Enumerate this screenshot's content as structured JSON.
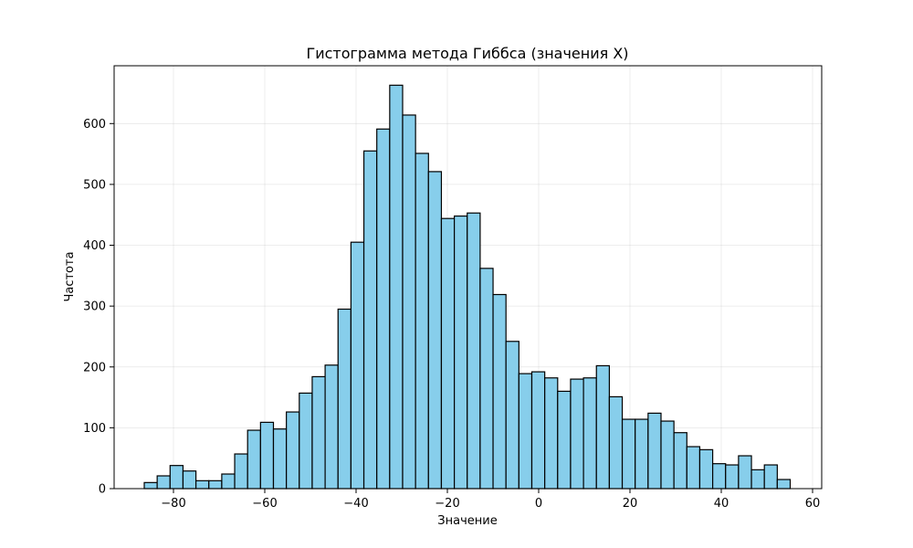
{
  "chart_data": {
    "type": "bar",
    "title": "Гистограмма метода Гиббса (значения X)",
    "xlabel": "Значение",
    "ylabel": "Частота",
    "xlim": [
      -93,
      62
    ],
    "ylim": [
      0,
      695
    ],
    "xticks": [
      -80,
      -60,
      -40,
      -20,
      0,
      20,
      40,
      60
    ],
    "xtick_labels": [
      "−80",
      "−60",
      "−40",
      "−20",
      "0",
      "20",
      "40",
      "60"
    ],
    "yticks": [
      0,
      100,
      200,
      300,
      400,
      500,
      600
    ],
    "ytick_labels": [
      "0",
      "100",
      "200",
      "300",
      "400",
      "500",
      "600"
    ],
    "grid": true,
    "bar_color": "#87ceeb",
    "edge_color": "#000000",
    "bin_start": -86.4,
    "bin_width": 2.83,
    "values": [
      10,
      21,
      38,
      29,
      13,
      13,
      24,
      57,
      96,
      109,
      98,
      126,
      157,
      184,
      203,
      295,
      405,
      555,
      591,
      663,
      614,
      551,
      521,
      444,
      448,
      453,
      362,
      319,
      242,
      189,
      192,
      182,
      160,
      180,
      182,
      202,
      151,
      114,
      114,
      124,
      111,
      92,
      69,
      64,
      41,
      39,
      54,
      31,
      39,
      15
    ]
  }
}
